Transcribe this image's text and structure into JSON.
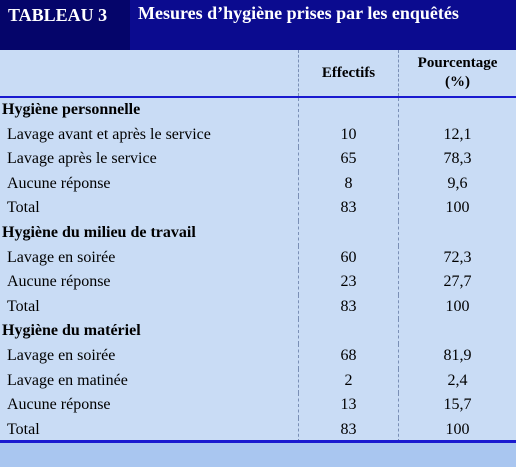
{
  "header": {
    "label": "TABLEAU 3",
    "title": "Mesures d’hygiène prises par les enquêtés"
  },
  "table": {
    "columns": [
      "Effectifs",
      "Pourcentage (%)"
    ],
    "sections": [
      {
        "title": "Hygiène personnelle",
        "rows": [
          [
            "Lavage avant et après le service",
            "10",
            "12,1"
          ],
          [
            "Lavage après le service",
            "65",
            "78,3"
          ],
          [
            "Aucune réponse",
            "8",
            "9,6"
          ],
          [
            "Total",
            "83",
            "100"
          ]
        ]
      },
      {
        "title": "Hygiène du milieu de travail",
        "rows": [
          [
            "Lavage en soirée",
            "60",
            "72,3"
          ],
          [
            "Aucune réponse",
            "23",
            "27,7"
          ],
          [
            "Total",
            "83",
            "100"
          ]
        ]
      },
      {
        "title": "Hygiène du matériel",
        "rows": [
          [
            "Lavage en soirée",
            "68",
            "81,9"
          ],
          [
            "Lavage en matinée",
            "2",
            "2,4"
          ],
          [
            "Aucune réponse",
            "13",
            "15,7"
          ],
          [
            "Total",
            "83",
            "100"
          ]
        ]
      }
    ]
  }
}
